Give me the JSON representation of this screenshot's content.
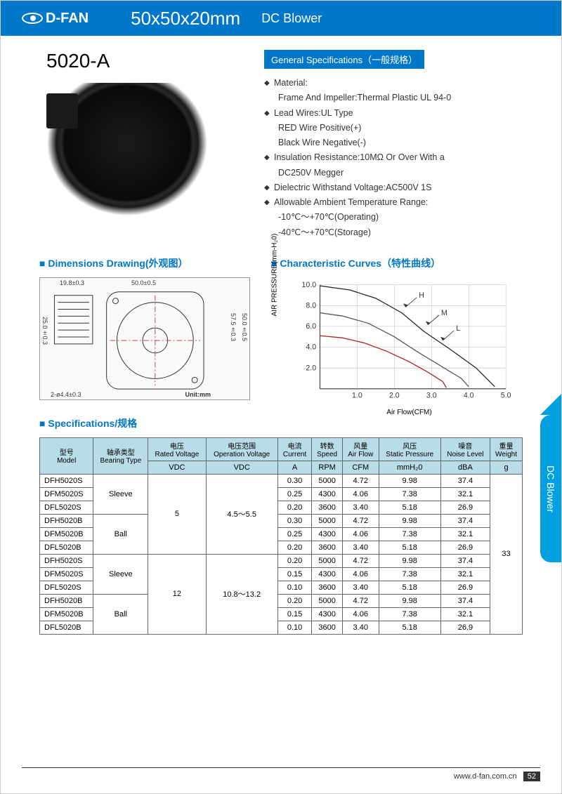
{
  "header": {
    "brand": "D-FAN",
    "dimensions": "50x50x20mm",
    "product_type": "DC Blower"
  },
  "model": "5020-A",
  "general_spec": {
    "title": "General Specifications（一般规格）",
    "material_label": "Material:",
    "material_value": "Frame And Impeller:Thermal Plastic UL 94-0",
    "lead_wires_label": "Lead Wires:UL Type",
    "lead_wires_red": "RED Wire Positive(+)",
    "lead_wires_black": "Black Wire Negative(-)",
    "insulation": "Insulation Resistance:10MΩ Or Over With a",
    "insulation_sub": "DC250V Megger",
    "dielectric": "Dielectric Withstand Voltage:AC500V 1S",
    "temp_label": "Allowable Ambient Temperature Range:",
    "temp_operating": "-10℃～+70℃(Operating)",
    "temp_storage": "-40℃～+70℃(Storage)"
  },
  "sections": {
    "dimensions": "Dimensions Drawing(外观图）",
    "curves": "Characteristic Curves（特性曲线）",
    "specifications": "Specifications/规格"
  },
  "drawing": {
    "dim_w_top": "50.0±0.5",
    "dim_w_left": "19.8±0.3",
    "dim_h_left": "25.0±0.3",
    "dim_h_right_inner": "57.5±0.3",
    "dim_h_right_outer": "50.0±0.5",
    "dim_hole": "2-ø4.4±0.3",
    "unit": "Unit:mm"
  },
  "chart": {
    "ylabel": "AIR PRESSURE(mm-H₂0)",
    "xlabel": "Air Flow(CFM)",
    "ylim": [
      0,
      10
    ],
    "ytick_step": 2.0,
    "xlim": [
      0,
      5
    ],
    "xtick_step": 1.0,
    "yticks": [
      "2.0",
      "4.0",
      "6.0",
      "8.0",
      "10.0"
    ],
    "xticks": [
      "1.0",
      "2.0",
      "3.0",
      "4.0",
      "5.0"
    ],
    "curves": {
      "H": {
        "color": "#222",
        "label": "H",
        "label_x": 2.5,
        "label_y": 8.2,
        "points": [
          [
            0,
            9.9
          ],
          [
            0.8,
            9.5
          ],
          [
            1.5,
            8.7
          ],
          [
            2.2,
            7.3
          ],
          [
            2.8,
            5.5
          ],
          [
            3.5,
            3.8
          ],
          [
            4.2,
            2.0
          ],
          [
            4.7,
            0.2
          ]
        ]
      },
      "M": {
        "color": "#555",
        "label": "M",
        "label_x": 3.1,
        "label_y": 6.5,
        "points": [
          [
            0,
            7.3
          ],
          [
            0.6,
            7.0
          ],
          [
            1.3,
            6.3
          ],
          [
            2.0,
            5.0
          ],
          [
            2.6,
            3.6
          ],
          [
            3.2,
            2.3
          ],
          [
            3.8,
            1.0
          ],
          [
            4.0,
            0.2
          ]
        ]
      },
      "L": {
        "color": "#b02020",
        "label": "L",
        "label_x": 3.5,
        "label_y": 5.0,
        "points": [
          [
            0,
            5.1
          ],
          [
            0.6,
            4.9
          ],
          [
            1.2,
            4.4
          ],
          [
            1.8,
            3.6
          ],
          [
            2.4,
            2.6
          ],
          [
            2.9,
            1.6
          ],
          [
            3.3,
            0.7
          ],
          [
            3.4,
            0.1
          ]
        ]
      }
    }
  },
  "table": {
    "headers": {
      "model": {
        "cn": "型号",
        "en": "Model"
      },
      "bearing": {
        "cn": "轴承类型",
        "en": "Bearing Type"
      },
      "voltage": {
        "cn": "电压",
        "en": "Rated Voltage",
        "unit": "VDC"
      },
      "op_voltage": {
        "cn": "电压范围",
        "en": "Operation Voltage",
        "unit": "VDC"
      },
      "current": {
        "cn": "电流",
        "en": "Current",
        "unit": "A"
      },
      "speed": {
        "cn": "转数",
        "en": "Speed",
        "unit": "RPM"
      },
      "airflow": {
        "cn": "风量",
        "en": "Air Flow",
        "unit": "CFM"
      },
      "pressure": {
        "cn": "风压",
        "en": "Static Pressure",
        "unit": "mmH₂0"
      },
      "noise": {
        "cn": "噪音",
        "en": "Noise Level",
        "unit": "dBA"
      },
      "weight": {
        "cn": "重量",
        "en": "Weight",
        "unit": "g"
      }
    },
    "groups": [
      {
        "voltage": "5",
        "op_voltage": "4.5～5.5",
        "bearings": [
          {
            "type": "Sleeve",
            "rows": [
              {
                "model": "DFH5020S",
                "current": "0.30",
                "speed": "5000",
                "airflow": "4.72",
                "pressure": "9.98",
                "noise": "37.4"
              },
              {
                "model": "DFM5020S",
                "current": "0.25",
                "speed": "4300",
                "airflow": "4.06",
                "pressure": "7.38",
                "noise": "32.1"
              },
              {
                "model": "DFL5020S",
                "current": "0.20",
                "speed": "3600",
                "airflow": "3.40",
                "pressure": "5.18",
                "noise": "26.9"
              }
            ]
          },
          {
            "type": "Ball",
            "rows": [
              {
                "model": "DFH5020B",
                "current": "0.30",
                "speed": "5000",
                "airflow": "4.72",
                "pressure": "9.98",
                "noise": "37.4"
              },
              {
                "model": "DFM5020B",
                "current": "0.25",
                "speed": "4300",
                "airflow": "4.06",
                "pressure": "7.38",
                "noise": "32.1"
              },
              {
                "model": "DFL5020B",
                "current": "0.20",
                "speed": "3600",
                "airflow": "3.40",
                "pressure": "5.18",
                "noise": "26.9"
              }
            ]
          }
        ]
      },
      {
        "voltage": "12",
        "op_voltage": "10.8～13.2",
        "bearings": [
          {
            "type": "Sleeve",
            "rows": [
              {
                "model": "DFH5020S",
                "current": "0.20",
                "speed": "5000",
                "airflow": "4.72",
                "pressure": "9.98",
                "noise": "37.4"
              },
              {
                "model": "DFM5020S",
                "current": "0.15",
                "speed": "4300",
                "airflow": "4.06",
                "pressure": "7.38",
                "noise": "32.1"
              },
              {
                "model": "DFL5020S",
                "current": "0.10",
                "speed": "3600",
                "airflow": "3.40",
                "pressure": "5.18",
                "noise": "26.9"
              }
            ]
          },
          {
            "type": "Ball",
            "rows": [
              {
                "model": "DFH5020B",
                "current": "0.20",
                "speed": "5000",
                "airflow": "4.72",
                "pressure": "9.98",
                "noise": "37.4"
              },
              {
                "model": "DFM5020B",
                "current": "0.15",
                "speed": "4300",
                "airflow": "4.06",
                "pressure": "7.38",
                "noise": "32.1"
              },
              {
                "model": "DFL5020B",
                "current": "0.10",
                "speed": "3600",
                "airflow": "3.40",
                "pressure": "5.18",
                "noise": "26.9"
              }
            ]
          }
        ]
      }
    ],
    "weight": "33"
  },
  "side_tab": "DC Blower",
  "footer": {
    "url": "www.d-fan.com.cn",
    "page": "52"
  }
}
